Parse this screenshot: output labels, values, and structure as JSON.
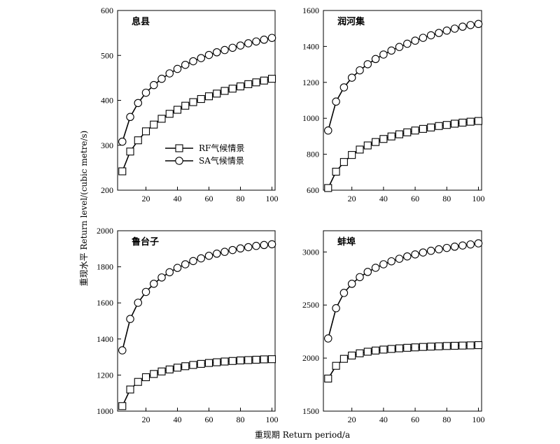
{
  "chart_data": {
    "type": "line",
    "xlabel": "重现期 Return period/a",
    "ylabel": "重现水平 Return level/(cubic metre/s)",
    "legend": [
      {
        "name": "RF气候情景",
        "marker": "square"
      },
      {
        "name": "SA气候情景",
        "marker": "circle"
      }
    ],
    "x": [
      5,
      10,
      15,
      20,
      25,
      30,
      35,
      40,
      45,
      50,
      55,
      60,
      65,
      70,
      75,
      80,
      85,
      90,
      95,
      100
    ],
    "xticks": [
      20,
      40,
      60,
      80,
      100
    ],
    "xlim": [
      2,
      102
    ],
    "panels": [
      {
        "title": "息县",
        "ylim": [
          200,
          600
        ],
        "yticks": [
          200,
          300,
          400,
          500,
          600
        ],
        "series": [
          {
            "name": "RF气候情景",
            "values": [
              242,
              286,
              311,
              331,
              346,
              359,
              370,
              379,
              388,
              396,
              403,
              409,
              415,
              421,
              426,
              431,
              436,
              440,
              444,
              448
            ]
          },
          {
            "name": "SA气候情景",
            "values": [
              308,
              363,
              394,
              417,
              434,
              448,
              460,
              470,
              479,
              487,
              494,
              501,
              507,
              512,
              517,
              522,
              527,
              531,
              535,
              539
            ]
          }
        ]
      },
      {
        "title": "润河集",
        "ylim": [
          600,
          1600
        ],
        "yticks": [
          600,
          800,
          1000,
          1200,
          1400,
          1600
        ],
        "series": [
          {
            "name": "RF气候情景",
            "values": [
              612,
              703,
              757,
              796,
              826,
              849,
              868,
              885,
              899,
              911,
              922,
              932,
              941,
              949,
              957,
              963,
              970,
              976,
              981,
              985
            ]
          },
          {
            "name": "SA气候情景",
            "values": [
              932,
              1093,
              1172,
              1226,
              1267,
              1301,
              1330,
              1355,
              1377,
              1397,
              1415,
              1432,
              1448,
              1462,
              1475,
              1488,
              1499,
              1510,
              1519,
              1525
            ]
          }
        ]
      },
      {
        "title": "鲁台子",
        "ylim": [
          1000,
          2000
        ],
        "yticks": [
          1000,
          1200,
          1400,
          1600,
          1800,
          2000
        ],
        "series": [
          {
            "name": "RF气候情景",
            "values": [
              1028,
              1120,
              1162,
              1188,
              1206,
              1220,
              1231,
              1241,
              1249,
              1256,
              1262,
              1267,
              1271,
              1275,
              1278,
              1281,
              1283,
              1285,
              1287,
              1288
            ]
          },
          {
            "name": "SA气候情景",
            "values": [
              1337,
              1511,
              1601,
              1661,
              1706,
              1741,
              1770,
              1794,
              1814,
              1832,
              1847,
              1861,
              1873,
              1883,
              1893,
              1902,
              1909,
              1916,
              1921,
              1925
            ]
          }
        ]
      },
      {
        "title": "蚌埠",
        "ylim": [
          1500,
          3200
        ],
        "yticks": [
          1500,
          2000,
          2500,
          3000
        ],
        "series": [
          {
            "name": "RF气候情景",
            "values": [
              1807,
              1927,
              1993,
              2024,
              2045,
              2060,
              2071,
              2080,
              2086,
              2092,
              2097,
              2101,
              2105,
              2108,
              2111,
              2114,
              2116,
              2118,
              2120,
              2122
            ]
          },
          {
            "name": "SA气候情景",
            "values": [
              2185,
              2470,
              2614,
              2700,
              2763,
              2812,
              2851,
              2884,
              2912,
              2936,
              2958,
              2977,
              2995,
              3011,
              3025,
              3038,
              3050,
              3061,
              3071,
              3081
            ]
          }
        ]
      }
    ]
  }
}
